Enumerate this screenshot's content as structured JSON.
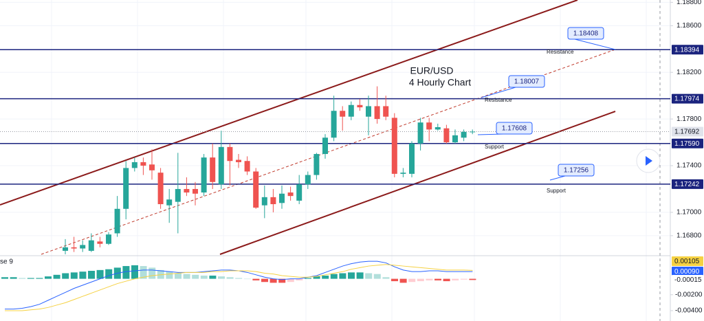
{
  "chart_data": [
    {
      "type": "candlestick",
      "title": "EUR/USD",
      "subtitle": "4 Hourly Chart",
      "up_color": "#26a69a",
      "down_color": "#ef5350",
      "open": [
        1.1667,
        1.167,
        1.1669,
        1.1667,
        1.1675,
        1.1673,
        1.1682,
        1.1703,
        1.1738,
        1.1743,
        1.1741,
        1.1734,
        1.1706,
        1.1709,
        1.172,
        1.172,
        1.1717,
        1.1747,
        1.1724,
        1.1756,
        1.1745,
        1.1744,
        1.1735,
        1.1706,
        1.1713,
        1.1708,
        1.1717,
        1.171,
        1.1724,
        1.1732,
        1.175,
        1.1764,
        1.1787,
        1.1782,
        1.1792,
        1.1782,
        1.1791,
        1.1791,
        1.1781,
        1.1733,
        1.1733,
        1.1759,
        1.1777,
        1.1771,
        1.1772,
        1.176,
        1.1764,
        1.1769
      ],
      "high": [
        1.1677,
        1.1679,
        1.1676,
        1.1682,
        1.1679,
        1.1683,
        1.1714,
        1.1744,
        1.1747,
        1.1747,
        1.1754,
        1.1738,
        1.172,
        1.1751,
        1.173,
        1.1726,
        1.175,
        1.1759,
        1.177,
        1.1759,
        1.175,
        1.1748,
        1.1738,
        1.1723,
        1.172,
        1.1723,
        1.1722,
        1.1732,
        1.1735,
        1.1751,
        1.1767,
        1.18,
        1.1791,
        1.1795,
        1.1797,
        1.18,
        1.1808,
        1.18,
        1.1785,
        1.1738,
        1.1761,
        1.1781,
        1.1781,
        1.1776,
        1.1775,
        1.1771,
        1.1771,
        1.1771
      ],
      "low": [
        1.1664,
        1.1666,
        1.1666,
        1.1666,
        1.167,
        1.1672,
        1.1679,
        1.1694,
        1.1735,
        1.1732,
        1.1728,
        1.1703,
        1.1691,
        1.1682,
        1.1714,
        1.1706,
        1.1714,
        1.172,
        1.172,
        1.1723,
        1.1738,
        1.1732,
        1.1703,
        1.1695,
        1.17,
        1.1703,
        1.171,
        1.1707,
        1.172,
        1.1728,
        1.1746,
        1.1761,
        1.177,
        1.1779,
        1.1787,
        1.1766,
        1.1776,
        1.1779,
        1.173,
        1.173,
        1.173,
        1.1753,
        1.1761,
        1.177,
        1.1759,
        1.1759,
        1.1761,
        1.1767
      ],
      "close": [
        1.167,
        1.1669,
        1.1672,
        1.1676,
        1.1673,
        1.1681,
        1.1703,
        1.1738,
        1.1743,
        1.174,
        1.1736,
        1.1707,
        1.1711,
        1.172,
        1.1717,
        1.1716,
        1.1747,
        1.1726,
        1.1756,
        1.1744,
        1.1743,
        1.1735,
        1.1704,
        1.1713,
        1.1707,
        1.1716,
        1.1714,
        1.1724,
        1.1732,
        1.175,
        1.1764,
        1.1787,
        1.1782,
        1.1792,
        1.179,
        1.1791,
        1.178,
        1.1782,
        1.1733,
        1.1734,
        1.1759,
        1.1777,
        1.1771,
        1.1773,
        1.176,
        1.1766,
        1.1769,
        1.17692
      ],
      "ylim": [
        1.1664,
        1.1882
      ],
      "yticks": [
        {
          "value": 1.188,
          "label": "1.18800"
        },
        {
          "value": 1.186,
          "label": "1.18600"
        },
        {
          "value": 1.182,
          "label": "1.18200"
        },
        {
          "value": 1.178,
          "label": "1.17800"
        },
        {
          "value": 1.174,
          "label": "1.17400"
        },
        {
          "value": 1.17,
          "label": "1.17000"
        },
        {
          "value": 1.168,
          "label": "1.16800"
        }
      ],
      "grid": true,
      "levels": [
        {
          "value": 1.18394,
          "label": "1.18394"
        },
        {
          "value": 1.17974,
          "label": "1.17974"
        },
        {
          "value": 1.1759,
          "label": "1.17590"
        },
        {
          "value": 1.17242,
          "label": "1.17242"
        }
      ],
      "level_color": "#1a237e",
      "current_price": 1.17692,
      "callouts": [
        {
          "value": 1.18408,
          "note": "Resistance"
        },
        {
          "value": 1.18007,
          "note": "Resistance"
        },
        {
          "value": 1.17608,
          "note": "Support"
        },
        {
          "value": 1.17256,
          "note": "Support"
        }
      ]
    },
    {
      "type": "macd",
      "label": "se 9",
      "histogram": [
        0.0002,
        0.0002,
        0.0001,
        0.0001,
        0.0001,
        0.0003,
        0.0005,
        0.0007,
        0.0008,
        0.0009,
        0.001,
        0.0011,
        0.0012,
        0.0014,
        0.0016,
        0.0017,
        0.0016,
        0.0014,
        0.0011,
        0.0009,
        0.0007,
        0.0006,
        0.0005,
        0.0004,
        0.0004,
        0.0003,
        0.0002,
        0.0001,
        0.0,
        -0.0002,
        -0.0004,
        -0.0005,
        -0.0005,
        -0.0004,
        -0.0002,
        0.0001,
        0.0003,
        0.0004,
        0.0006,
        0.0007,
        0.0008,
        0.0008,
        0.0007,
        0.0006,
        0.0002,
        -0.0003,
        -0.0005,
        -0.0004,
        -0.0003,
        -0.0002,
        -0.0002,
        -0.0003,
        -0.0002,
        -0.0001,
        -0.00015
      ],
      "series": [
        {
          "color": "#2962ff",
          "values": [
            -0.0038,
            -0.0038,
            -0.0037,
            -0.0035,
            -0.0032,
            -0.0027,
            -0.0022,
            -0.0017,
            -0.0012,
            -0.0008,
            -0.0004,
            0.0,
            0.0004,
            0.0007,
            0.0009,
            0.001,
            0.0011,
            0.0011,
            0.001,
            0.0009,
            0.0008,
            0.0008,
            0.0008,
            0.0009,
            0.001,
            0.0011,
            0.0011,
            0.001,
            0.0008,
            0.0005,
            0.0002,
            0.0,
            -0.0001,
            0.0,
            0.0,
            0.0002,
            0.0004,
            0.0008,
            0.0012,
            0.0016,
            0.0019,
            0.0021,
            0.0022,
            0.0022,
            0.002,
            0.0015,
            0.0011,
            0.0009,
            0.0009,
            0.001,
            0.001,
            0.0009,
            0.0009,
            0.0009,
            0.0009
          ]
        },
        {
          "color": "#f5d142",
          "values": [
            -0.004,
            -0.004,
            -0.004,
            -0.0039,
            -0.0038,
            -0.0036,
            -0.0033,
            -0.003,
            -0.0026,
            -0.0022,
            -0.0018,
            -0.0014,
            -0.001,
            -0.0006,
            -0.0003,
            0.0,
            0.0002,
            0.0004,
            0.0005,
            0.0006,
            0.0007,
            0.0008,
            0.0008,
            0.0008,
            0.0009,
            0.0009,
            0.001,
            0.001,
            0.001,
            0.0009,
            0.0007,
            0.0006,
            0.0004,
            0.0003,
            0.0002,
            0.0002,
            0.0003,
            0.0005,
            0.0007,
            0.0009,
            0.0012,
            0.0014,
            0.0016,
            0.0017,
            0.0018,
            0.0017,
            0.0016,
            0.0015,
            0.0014,
            0.0013,
            0.0012,
            0.0011,
            0.0011,
            0.0011,
            0.00105
          ]
        }
      ],
      "last_labels": [
        {
          "value": 0.00105,
          "label": "0.00105",
          "color": "#f5d142"
        },
        {
          "value": 0.0009,
          "label": "0.00090",
          "color": "#2962ff"
        },
        {
          "value": -0.00015,
          "label": "-0.00015",
          "color": "#ffffff"
        }
      ],
      "ylim": [
        -0.0053,
        0.0029
      ],
      "yticks": [
        {
          "value": -0.002,
          "label": "-0.00200"
        },
        {
          "value": -0.004,
          "label": "-0.00400"
        }
      ]
    }
  ]
}
